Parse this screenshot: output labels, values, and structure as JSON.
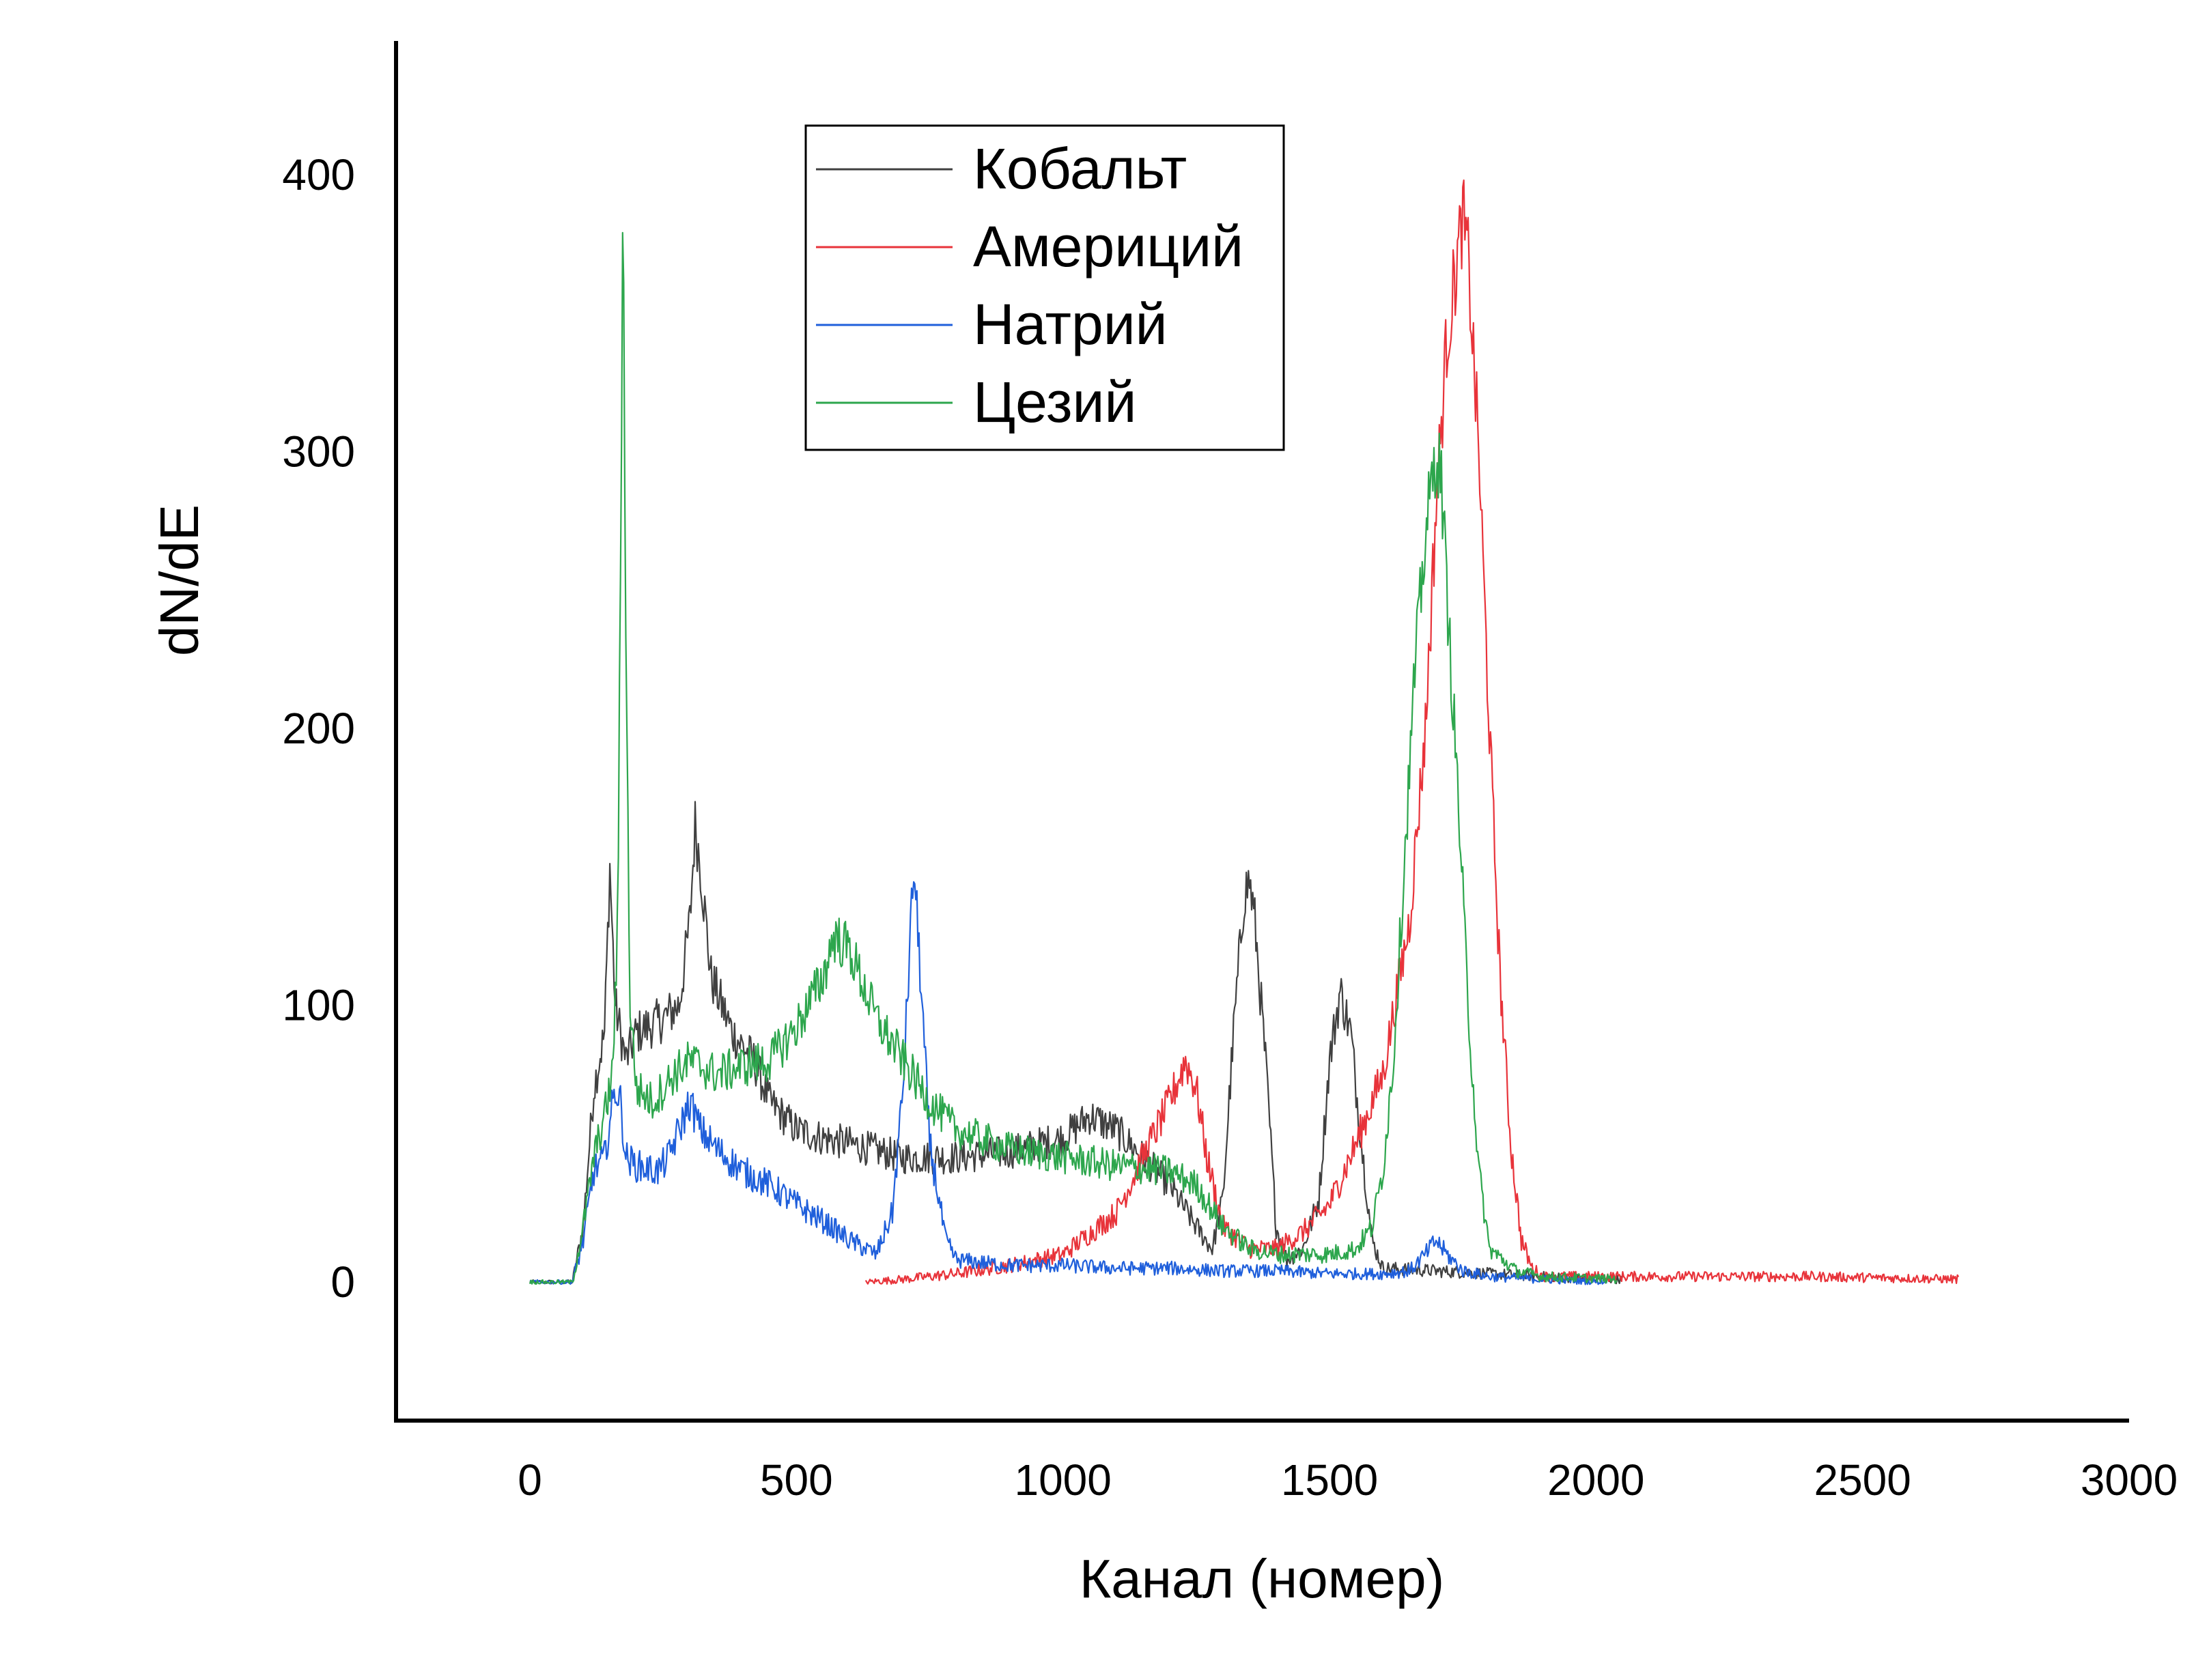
{
  "chart_data": {
    "type": "line",
    "xlabel": "Канал (номер)",
    "ylabel": "dN/dE",
    "xlim": [
      -250,
      3000
    ],
    "ylim": [
      -50,
      450
    ],
    "xticks": [
      "0",
      "500",
      "1000",
      "1500",
      "2000",
      "2500",
      "3000"
    ],
    "yticks": [
      "0",
      "100",
      "200",
      "300",
      "400"
    ],
    "grid": false,
    "legend_position": "top-center",
    "series": [
      {
        "name": "Кобальт",
        "color": "#404040",
        "range": [
          0,
          2050
        ],
        "points": [
          [
            0,
            0
          ],
          [
            80,
            0
          ],
          [
            100,
            20
          ],
          [
            120,
            70
          ],
          [
            140,
            90
          ],
          [
            150,
            150
          ],
          [
            160,
            100
          ],
          [
            180,
            80
          ],
          [
            200,
            90
          ],
          [
            250,
            95
          ],
          [
            280,
            100
          ],
          [
            300,
            130
          ],
          [
            310,
            165
          ],
          [
            320,
            150
          ],
          [
            340,
            110
          ],
          [
            380,
            90
          ],
          [
            420,
            80
          ],
          [
            450,
            65
          ],
          [
            500,
            55
          ],
          [
            550,
            52
          ],
          [
            600,
            50
          ],
          [
            700,
            45
          ],
          [
            800,
            45
          ],
          [
            900,
            47
          ],
          [
            1000,
            52
          ],
          [
            1050,
            60
          ],
          [
            1100,
            55
          ],
          [
            1150,
            45
          ],
          [
            1200,
            35
          ],
          [
            1250,
            20
          ],
          [
            1280,
            12
          ],
          [
            1300,
            30
          ],
          [
            1320,
            90
          ],
          [
            1340,
            140
          ],
          [
            1350,
            145
          ],
          [
            1360,
            130
          ],
          [
            1380,
            80
          ],
          [
            1400,
            20
          ],
          [
            1420,
            8
          ],
          [
            1450,
            12
          ],
          [
            1480,
            30
          ],
          [
            1500,
            80
          ],
          [
            1520,
            105
          ],
          [
            1540,
            90
          ],
          [
            1560,
            50
          ],
          [
            1580,
            15
          ],
          [
            1600,
            5
          ],
          [
            1700,
            4
          ],
          [
            1800,
            3
          ],
          [
            1900,
            2
          ],
          [
            2000,
            1
          ],
          [
            2050,
            1
          ]
        ]
      },
      {
        "name": "Америций",
        "color": "#e8333a",
        "range": [
          630,
          2680
        ],
        "points": [
          [
            630,
            0
          ],
          [
            700,
            1
          ],
          [
            800,
            3
          ],
          [
            900,
            6
          ],
          [
            1000,
            10
          ],
          [
            1100,
            25
          ],
          [
            1150,
            45
          ],
          [
            1200,
            65
          ],
          [
            1230,
            80
          ],
          [
            1250,
            70
          ],
          [
            1270,
            45
          ],
          [
            1300,
            20
          ],
          [
            1350,
            12
          ],
          [
            1400,
            12
          ],
          [
            1450,
            18
          ],
          [
            1500,
            28
          ],
          [
            1550,
            50
          ],
          [
            1600,
            75
          ],
          [
            1650,
            130
          ],
          [
            1680,
            200
          ],
          [
            1700,
            280
          ],
          [
            1720,
            340
          ],
          [
            1740,
            370
          ],
          [
            1750,
            385
          ],
          [
            1760,
            370
          ],
          [
            1780,
            300
          ],
          [
            1800,
            200
          ],
          [
            1820,
            110
          ],
          [
            1840,
            50
          ],
          [
            1860,
            15
          ],
          [
            1880,
            5
          ],
          [
            1900,
            2
          ],
          [
            2000,
            2
          ],
          [
            2200,
            2
          ],
          [
            2400,
            2
          ],
          [
            2680,
            1
          ]
        ]
      },
      {
        "name": "Натрий",
        "color": "#1f5fdb",
        "range": [
          0,
          2020
        ],
        "points": [
          [
            0,
            0
          ],
          [
            80,
            0
          ],
          [
            100,
            15
          ],
          [
            120,
            40
          ],
          [
            140,
            45
          ],
          [
            160,
            70
          ],
          [
            170,
            65
          ],
          [
            180,
            45
          ],
          [
            200,
            42
          ],
          [
            240,
            40
          ],
          [
            260,
            45
          ],
          [
            300,
            65
          ],
          [
            320,
            55
          ],
          [
            350,
            48
          ],
          [
            400,
            40
          ],
          [
            450,
            35
          ],
          [
            500,
            28
          ],
          [
            550,
            22
          ],
          [
            600,
            15
          ],
          [
            650,
            10
          ],
          [
            680,
            25
          ],
          [
            700,
            70
          ],
          [
            720,
            150
          ],
          [
            730,
            120
          ],
          [
            750,
            50
          ],
          [
            780,
            15
          ],
          [
            800,
            8
          ],
          [
            900,
            6
          ],
          [
            1000,
            6
          ],
          [
            1100,
            5
          ],
          [
            1200,
            5
          ],
          [
            1300,
            4
          ],
          [
            1400,
            4
          ],
          [
            1500,
            3
          ],
          [
            1600,
            3
          ],
          [
            1650,
            4
          ],
          [
            1680,
            10
          ],
          [
            1700,
            15
          ],
          [
            1720,
            10
          ],
          [
            1750,
            4
          ],
          [
            1800,
            2
          ],
          [
            1900,
            1
          ],
          [
            2020,
            0
          ]
        ]
      },
      {
        "name": "Цезий",
        "color": "#2da64d",
        "range": [
          0,
          2040
        ],
        "points": [
          [
            0,
            0
          ],
          [
            80,
            0
          ],
          [
            100,
            20
          ],
          [
            120,
            45
          ],
          [
            140,
            60
          ],
          [
            155,
            75
          ],
          [
            165,
            130
          ],
          [
            170,
            260
          ],
          [
            175,
            400
          ],
          [
            180,
            230
          ],
          [
            188,
            100
          ],
          [
            200,
            70
          ],
          [
            230,
            65
          ],
          [
            270,
            75
          ],
          [
            300,
            80
          ],
          [
            350,
            75
          ],
          [
            400,
            78
          ],
          [
            450,
            80
          ],
          [
            500,
            92
          ],
          [
            550,
            110
          ],
          [
            570,
            125
          ],
          [
            600,
            120
          ],
          [
            650,
            95
          ],
          [
            700,
            80
          ],
          [
            750,
            65
          ],
          [
            800,
            55
          ],
          [
            900,
            48
          ],
          [
            1000,
            45
          ],
          [
            1100,
            42
          ],
          [
            1200,
            40
          ],
          [
            1250,
            35
          ],
          [
            1300,
            20
          ],
          [
            1350,
            12
          ],
          [
            1400,
            10
          ],
          [
            1450,
            10
          ],
          [
            1500,
            10
          ],
          [
            1550,
            12
          ],
          [
            1580,
            20
          ],
          [
            1600,
            40
          ],
          [
            1620,
            80
          ],
          [
            1640,
            150
          ],
          [
            1660,
            220
          ],
          [
            1680,
            270
          ],
          [
            1700,
            300
          ],
          [
            1710,
            290
          ],
          [
            1720,
            250
          ],
          [
            1740,
            180
          ],
          [
            1760,
            100
          ],
          [
            1780,
            40
          ],
          [
            1800,
            12
          ],
          [
            1850,
            4
          ],
          [
            1900,
            2
          ],
          [
            2040,
            1
          ]
        ]
      }
    ]
  }
}
